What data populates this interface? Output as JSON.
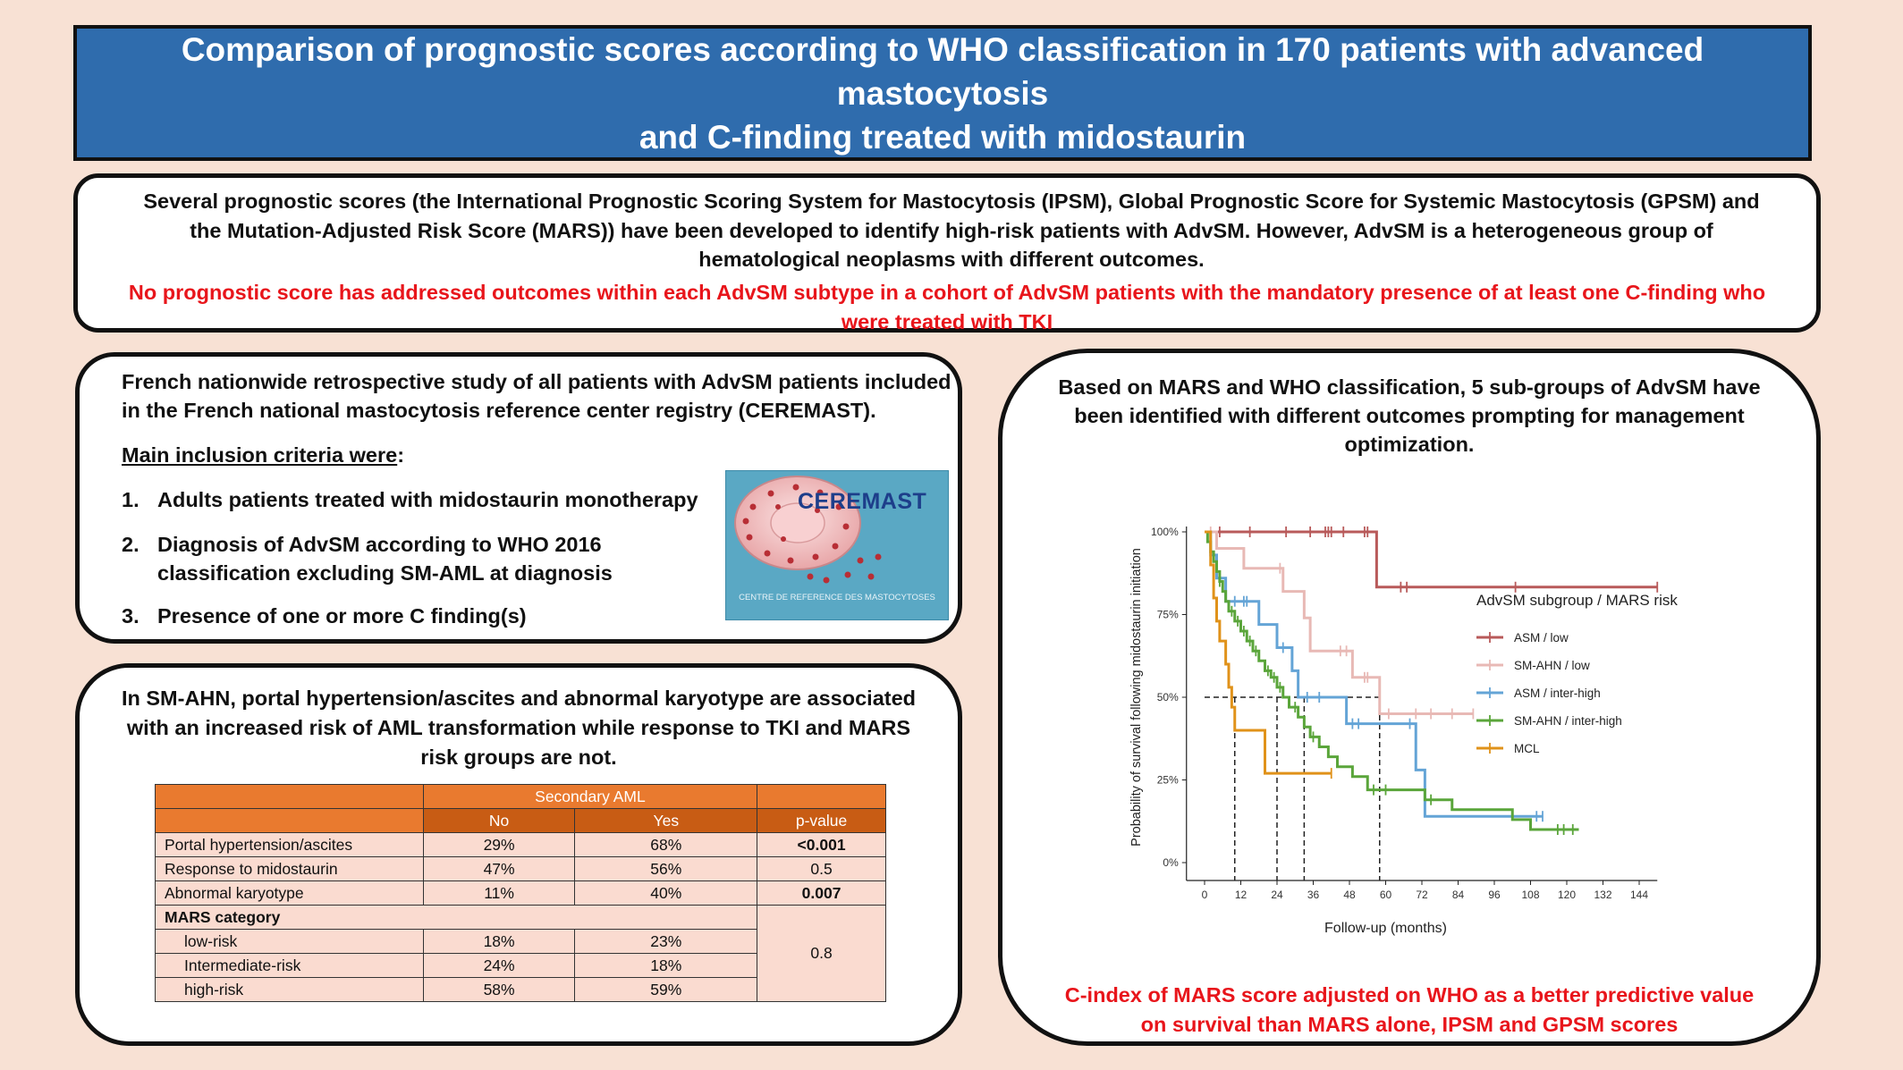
{
  "title": {
    "line1": "Comparison of prognostic scores according to WHO classification in 170 patients with advanced mastocytosis",
    "line2": "and C-finding treated with midostaurin"
  },
  "intro": {
    "text": "Several prognostic scores (the International Prognostic Scoring System for Mastocytosis (IPSM), Global Prognostic Score for Systemic Mastocytosis (GPSM) and the Mutation-Adjusted Risk Score (MARS)) have been developed to identify high-risk patients with AdvSM. However, AdvSM is a heterogeneous group of hematological neoplasms with different outcomes.",
    "highlight": "No prognostic score has addressed outcomes within each AdvSM subtype in a cohort of AdvSM patients with the mandatory presence of at least one C-finding who were treated with TKI"
  },
  "study": {
    "description": "French nationwide retrospective study of all patients with AdvSM patients included in the French national mastocytosis reference center registry (CEREMAST).",
    "criteria_heading": "Main inclusion criteria were",
    "criteria": [
      {
        "num": "1.",
        "text": "Adults patients treated with midostaurin monotherapy"
      },
      {
        "num": "2.",
        "text": "Diagnosis of AdvSM according to WHO 2016 classification excluding SM-AML at diagnosis"
      },
      {
        "num": "3.",
        "text": "Presence of one or more C finding(s)"
      }
    ],
    "logo": {
      "name": "CEREMAST",
      "subtitle": "CENTRE DE REFERENCE DES MASTOCYTOSES"
    }
  },
  "ahn_panel": {
    "heading": "In SM-AHN, portal hypertension/ascites and abnormal karyotype are associated with an increased risk of AML transformation while response to TKI and MARS risk groups are not.",
    "table": {
      "group_header": "Secondary AML",
      "col_no": "No",
      "col_yes": "Yes",
      "col_p": "p-value",
      "rows": [
        {
          "label": "Portal hypertension/ascites",
          "no": "29%",
          "yes": "68%",
          "p": "<0.001"
        },
        {
          "label": "Response to midostaurin",
          "no": "47%",
          "yes": "56%",
          "p": "0.5"
        },
        {
          "label": "Abnormal karyotype",
          "no": "11%",
          "yes": "40%",
          "p": "0.007"
        }
      ],
      "mars_label": "MARS category",
      "mars_p": "0.8",
      "mars_rows": [
        {
          "label": "low-risk",
          "no": "18%",
          "yes": "23%"
        },
        {
          "label": "Intermediate-risk",
          "no": "24%",
          "yes": "18%"
        },
        {
          "label": "high-risk",
          "no": "58%",
          "yes": "59%"
        }
      ]
    }
  },
  "km_panel": {
    "heading": "Based on MARS and WHO classification, 5 sub-groups of AdvSM have been identified with different outcomes prompting for management optimization.",
    "footer": "C-index of MARS score adjusted on WHO as a better predictive value on survival than MARS alone, IPSM and GPSM scores"
  },
  "chart_data": {
    "type": "line",
    "xlabel": "Follow-up (months)",
    "ylabel": "Probability of survival following midostaurin initiation",
    "xlim": [
      0,
      144
    ],
    "ylim": [
      0,
      1
    ],
    "x_ticks": [
      0,
      12,
      24,
      36,
      48,
      60,
      72,
      84,
      96,
      108,
      120,
      132,
      144
    ],
    "y_ticks": [
      0,
      0.25,
      0.5,
      0.75,
      1
    ],
    "y_tick_labels": [
      "0%",
      "25%",
      "50%",
      "75%",
      "100%"
    ],
    "legend_title": "AdvSM subgroup / MARS risk",
    "legend_position": "right",
    "median_line": 0.5,
    "medians": [
      10,
      24,
      33,
      58
    ],
    "series": [
      {
        "name": "ASM / low",
        "color": "#b85a5a",
        "steps": [
          [
            0,
            1
          ],
          [
            57,
            1
          ],
          [
            57,
            0.833
          ],
          [
            150,
            0.833
          ]
        ],
        "censors": [
          [
            5,
            1
          ],
          [
            15,
            1
          ],
          [
            27,
            1
          ],
          [
            35,
            1
          ],
          [
            40,
            1
          ],
          [
            41,
            1
          ],
          [
            42,
            1
          ],
          [
            46,
            1
          ],
          [
            53,
            1
          ],
          [
            54,
            1
          ],
          [
            65,
            0.833
          ],
          [
            67,
            0.833
          ],
          [
            103,
            0.833
          ],
          [
            150,
            0.833
          ]
        ]
      },
      {
        "name": "SM-AHN / low",
        "color": "#e8b9b5",
        "steps": [
          [
            0,
            1
          ],
          [
            4,
            1
          ],
          [
            4,
            0.95
          ],
          [
            13,
            0.95
          ],
          [
            13,
            0.89
          ],
          [
            26,
            0.89
          ],
          [
            26,
            0.82
          ],
          [
            33,
            0.82
          ],
          [
            33,
            0.74
          ],
          [
            35,
            0.74
          ],
          [
            35,
            0.64
          ],
          [
            49,
            0.64
          ],
          [
            49,
            0.56
          ],
          [
            58,
            0.56
          ],
          [
            58,
            0.45
          ],
          [
            89,
            0.45
          ]
        ],
        "censors": [
          [
            2,
            1
          ],
          [
            25,
            0.89
          ],
          [
            45,
            0.64
          ],
          [
            47,
            0.64
          ],
          [
            53,
            0.56
          ],
          [
            54,
            0.56
          ],
          [
            61,
            0.45
          ],
          [
            70,
            0.45
          ],
          [
            75,
            0.45
          ],
          [
            82,
            0.45
          ],
          [
            89,
            0.45
          ]
        ]
      },
      {
        "name": "ASM / inter-high",
        "color": "#64a4d6",
        "steps": [
          [
            0,
            1
          ],
          [
            2,
            1
          ],
          [
            2,
            0.93
          ],
          [
            4,
            0.93
          ],
          [
            4,
            0.86
          ],
          [
            7,
            0.86
          ],
          [
            7,
            0.79
          ],
          [
            18,
            0.79
          ],
          [
            18,
            0.72
          ],
          [
            24,
            0.72
          ],
          [
            24,
            0.65
          ],
          [
            29,
            0.65
          ],
          [
            29,
            0.58
          ],
          [
            31,
            0.58
          ],
          [
            31,
            0.5
          ],
          [
            47,
            0.5
          ],
          [
            47,
            0.42
          ],
          [
            70,
            0.42
          ],
          [
            70,
            0.28
          ],
          [
            73,
            0.28
          ],
          [
            73,
            0.14
          ],
          [
            112,
            0.14
          ]
        ],
        "censors": [
          [
            10,
            0.79
          ],
          [
            13,
            0.79
          ],
          [
            14,
            0.79
          ],
          [
            26,
            0.65
          ],
          [
            34,
            0.5
          ],
          [
            38,
            0.5
          ],
          [
            49,
            0.42
          ],
          [
            51,
            0.42
          ],
          [
            68,
            0.42
          ],
          [
            110,
            0.14
          ],
          [
            112,
            0.14
          ]
        ]
      },
      {
        "name": "SM-AHN / inter-high",
        "color": "#5aa53a",
        "steps": [
          [
            0,
            1
          ],
          [
            1,
            1
          ],
          [
            1,
            0.97
          ],
          [
            2,
            0.97
          ],
          [
            2,
            0.94
          ],
          [
            3,
            0.94
          ],
          [
            3,
            0.91
          ],
          [
            4,
            0.91
          ],
          [
            4,
            0.88
          ],
          [
            5,
            0.88
          ],
          [
            5,
            0.85
          ],
          [
            6,
            0.85
          ],
          [
            6,
            0.82
          ],
          [
            7,
            0.82
          ],
          [
            7,
            0.79
          ],
          [
            8,
            0.79
          ],
          [
            8,
            0.76
          ],
          [
            10,
            0.76
          ],
          [
            10,
            0.73
          ],
          [
            12,
            0.73
          ],
          [
            12,
            0.7
          ],
          [
            14,
            0.7
          ],
          [
            14,
            0.67
          ],
          [
            16,
            0.67
          ],
          [
            16,
            0.64
          ],
          [
            18,
            0.64
          ],
          [
            18,
            0.61
          ],
          [
            20,
            0.61
          ],
          [
            20,
            0.58
          ],
          [
            22,
            0.58
          ],
          [
            22,
            0.56
          ],
          [
            24,
            0.56
          ],
          [
            24,
            0.53
          ],
          [
            26,
            0.53
          ],
          [
            26,
            0.5
          ],
          [
            28,
            0.5
          ],
          [
            28,
            0.47
          ],
          [
            31,
            0.47
          ],
          [
            31,
            0.44
          ],
          [
            33,
            0.44
          ],
          [
            33,
            0.41
          ],
          [
            35,
            0.41
          ],
          [
            35,
            0.38
          ],
          [
            38,
            0.38
          ],
          [
            38,
            0.35
          ],
          [
            41,
            0.35
          ],
          [
            41,
            0.32
          ],
          [
            44,
            0.32
          ],
          [
            44,
            0.29
          ],
          [
            49,
            0.29
          ],
          [
            49,
            0.26
          ],
          [
            54,
            0.26
          ],
          [
            54,
            0.22
          ],
          [
            73,
            0.22
          ],
          [
            73,
            0.19
          ],
          [
            82,
            0.19
          ],
          [
            82,
            0.16
          ],
          [
            102,
            0.16
          ],
          [
            102,
            0.13
          ],
          [
            108,
            0.13
          ],
          [
            108,
            0.1
          ],
          [
            124,
            0.1
          ]
        ],
        "censors": [
          [
            5,
            0.85
          ],
          [
            9,
            0.76
          ],
          [
            11,
            0.73
          ],
          [
            13,
            0.7
          ],
          [
            15,
            0.67
          ],
          [
            17,
            0.64
          ],
          [
            21,
            0.58
          ],
          [
            23,
            0.56
          ],
          [
            25,
            0.53
          ],
          [
            30,
            0.47
          ],
          [
            36,
            0.38
          ],
          [
            56,
            0.22
          ],
          [
            60,
            0.22
          ],
          [
            75,
            0.19
          ],
          [
            117,
            0.1
          ],
          [
            119,
            0.1
          ],
          [
            122,
            0.1
          ]
        ]
      },
      {
        "name": "MCL",
        "color": "#e0921a",
        "steps": [
          [
            0,
            1
          ],
          [
            2,
            1
          ],
          [
            2,
            0.9
          ],
          [
            3,
            0.9
          ],
          [
            3,
            0.8
          ],
          [
            4,
            0.8
          ],
          [
            4,
            0.73
          ],
          [
            5,
            0.73
          ],
          [
            5,
            0.67
          ],
          [
            7,
            0.67
          ],
          [
            7,
            0.6
          ],
          [
            8,
            0.6
          ],
          [
            8,
            0.53
          ],
          [
            9,
            0.53
          ],
          [
            9,
            0.47
          ],
          [
            10,
            0.47
          ],
          [
            10,
            0.4
          ],
          [
            20,
            0.4
          ],
          [
            20,
            0.27
          ],
          [
            42,
            0.27
          ]
        ],
        "censors": [
          [
            42,
            0.27
          ]
        ]
      }
    ]
  }
}
